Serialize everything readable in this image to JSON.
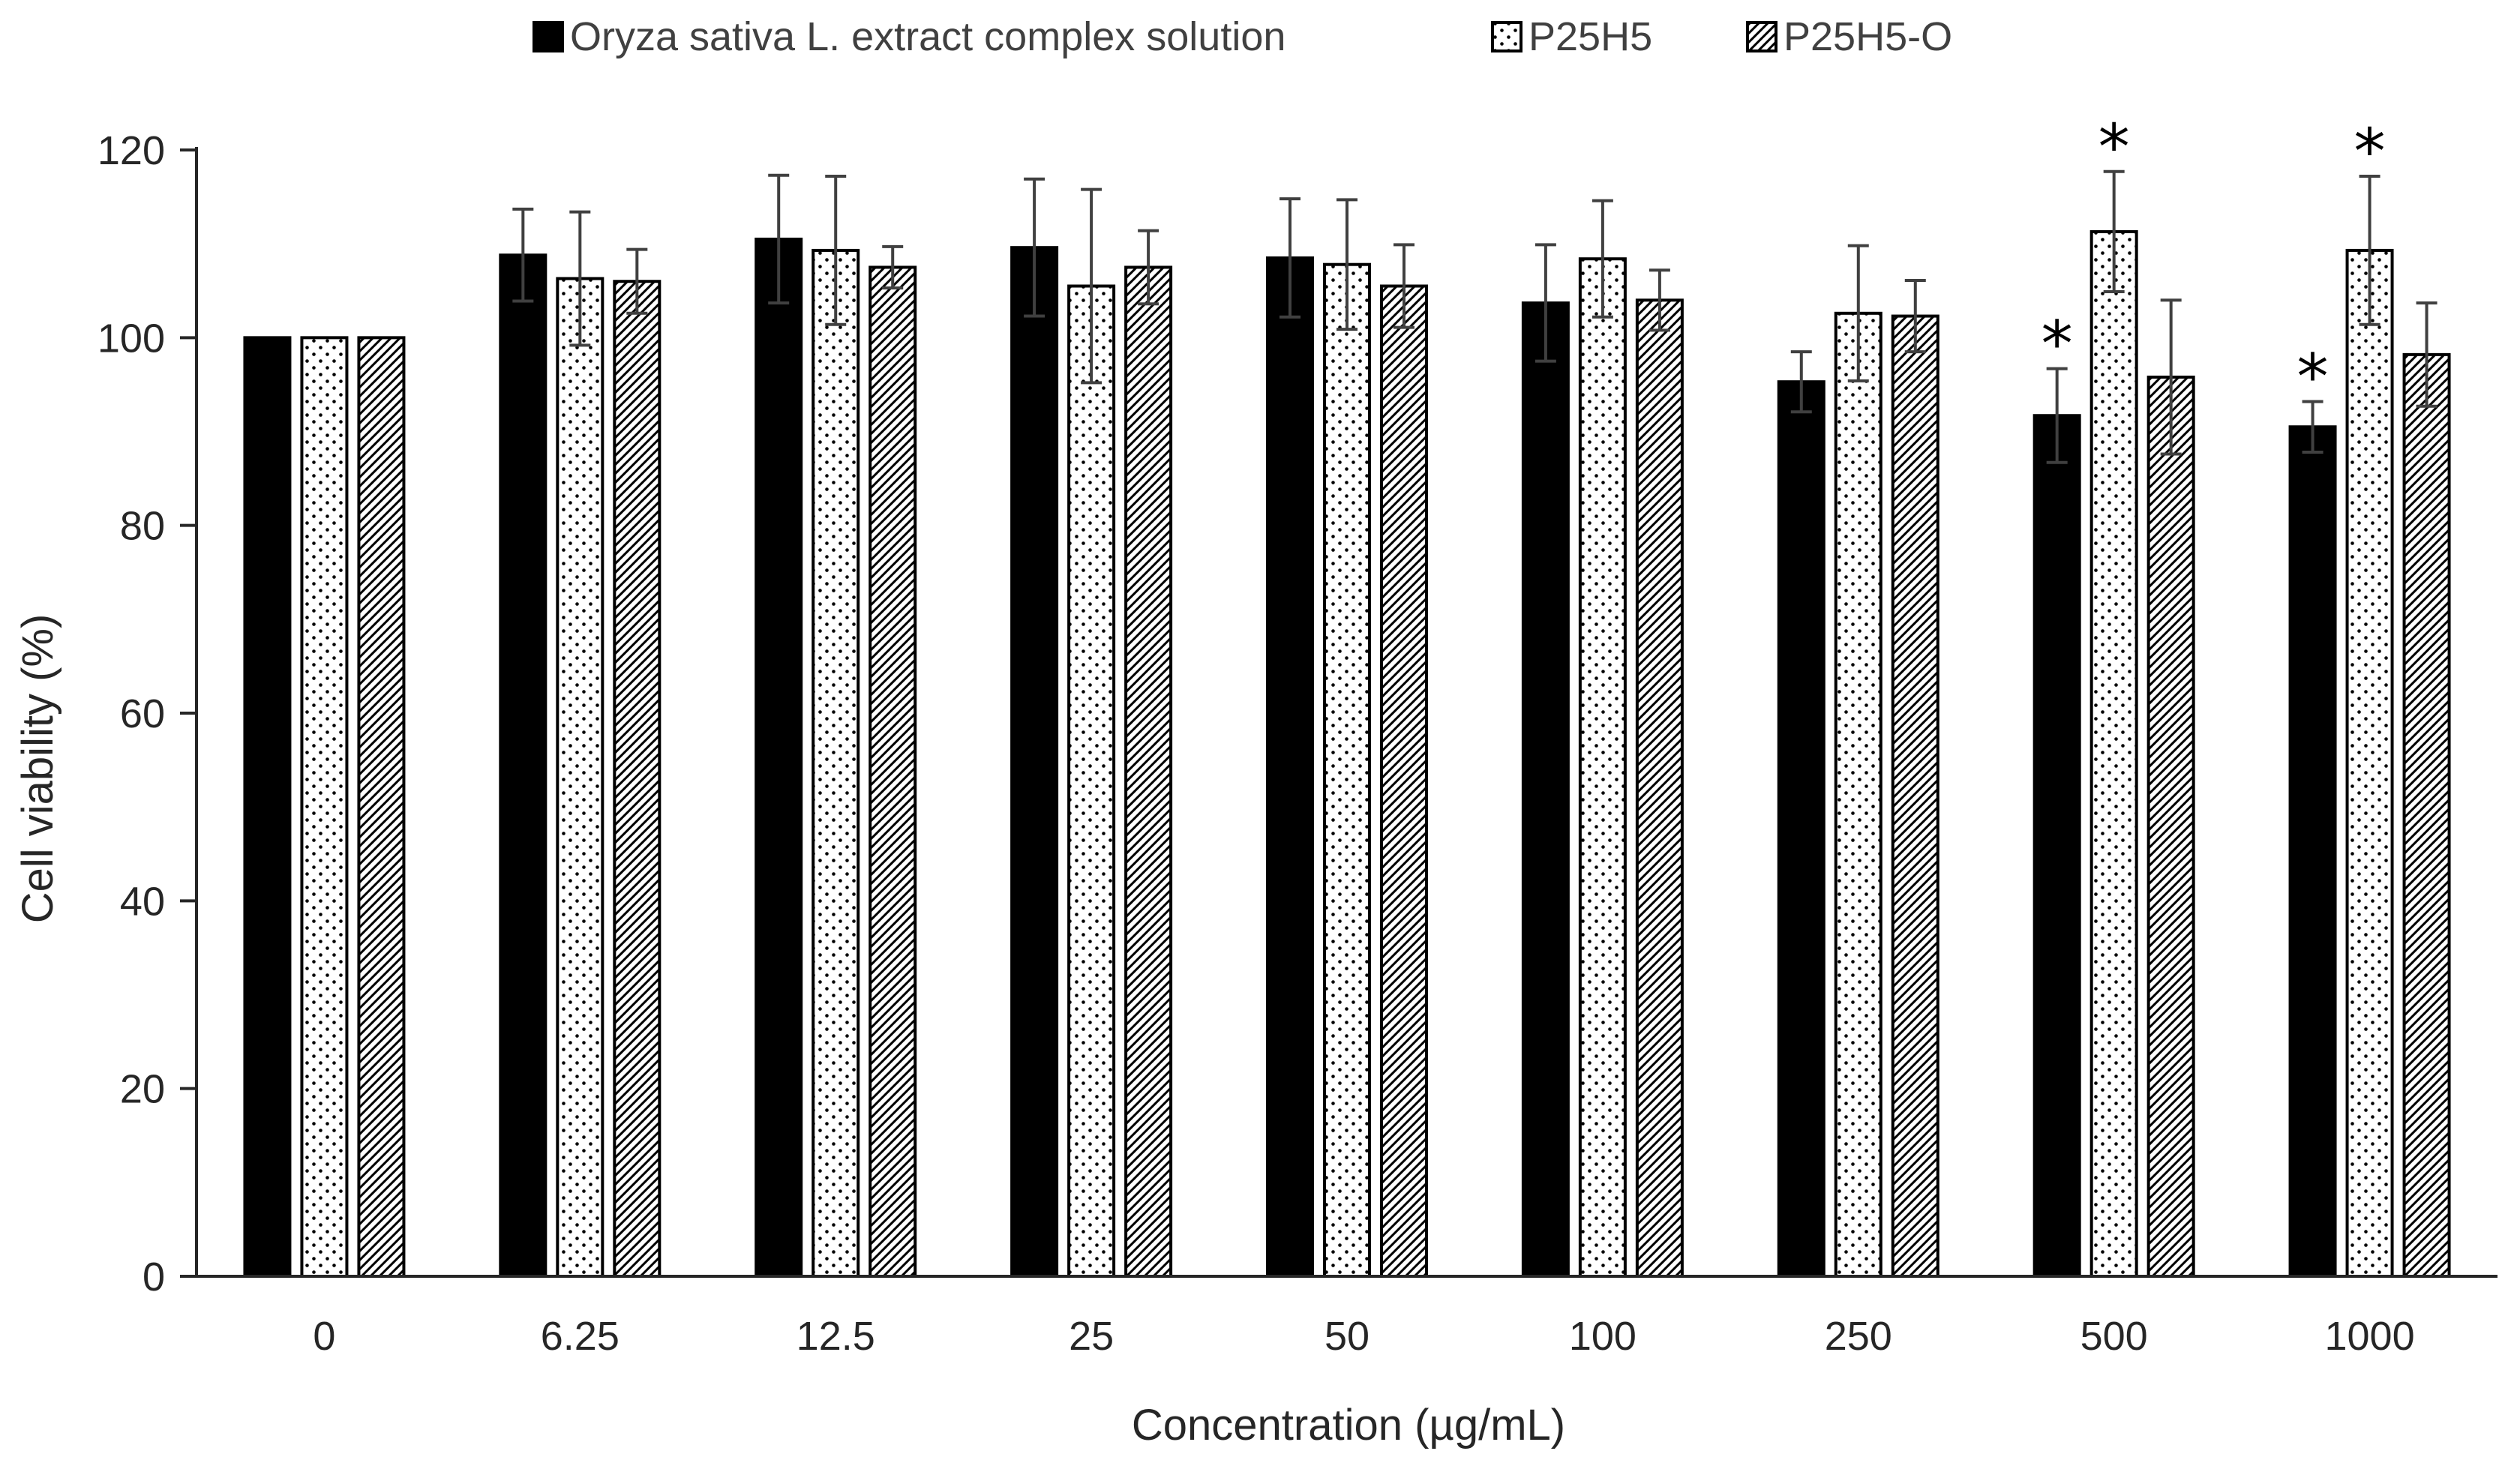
{
  "chart_data": {
    "type": "bar",
    "title": "",
    "xlabel": "Concentration (µg/mL)",
    "ylabel": "Cell viability (%)",
    "ylim": [
      0,
      120
    ],
    "yticks": [
      0,
      20,
      40,
      60,
      80,
      100,
      120
    ],
    "grid": false,
    "legend_position": "top",
    "categories": [
      "0",
      "6.25",
      "12.5",
      "25",
      "50",
      "100",
      "250",
      "500",
      "1000"
    ],
    "series": [
      {
        "name": "Oryza sativa L. extract complex solution",
        "pattern": "solid",
        "color": "#000000",
        "values": [
          100,
          108.8,
          110.5,
          109.6,
          108.5,
          103.7,
          95.3,
          91.7,
          90.5
        ],
        "errors": [
          0,
          4.9,
          6.8,
          7.3,
          6.3,
          6.2,
          3.2,
          5.0,
          2.7
        ],
        "significance": [
          "",
          "",
          "",
          "",
          "",
          "",
          "",
          "*",
          "*"
        ]
      },
      {
        "name": "P25H5",
        "pattern": "dots",
        "color": "#000000",
        "values": [
          100,
          106.3,
          109.3,
          105.5,
          107.8,
          108.4,
          102.6,
          111.3,
          109.3
        ],
        "errors": [
          0,
          7.1,
          7.9,
          10.3,
          6.9,
          6.2,
          7.2,
          6.4,
          7.9
        ],
        "significance": [
          "",
          "",
          "",
          "",
          "",
          "",
          "",
          "*",
          "*"
        ]
      },
      {
        "name": "P25H5-O",
        "pattern": "hatch",
        "color": "#000000",
        "values": [
          100,
          106.0,
          107.5,
          107.5,
          105.5,
          104.0,
          102.3,
          95.8,
          98.2
        ],
        "errors": [
          0,
          3.4,
          2.2,
          3.9,
          4.4,
          3.2,
          3.8,
          8.2,
          5.5
        ],
        "significance": [
          "",
          "",
          "",
          "",
          "",
          "",
          "",
          "",
          ""
        ]
      }
    ]
  }
}
